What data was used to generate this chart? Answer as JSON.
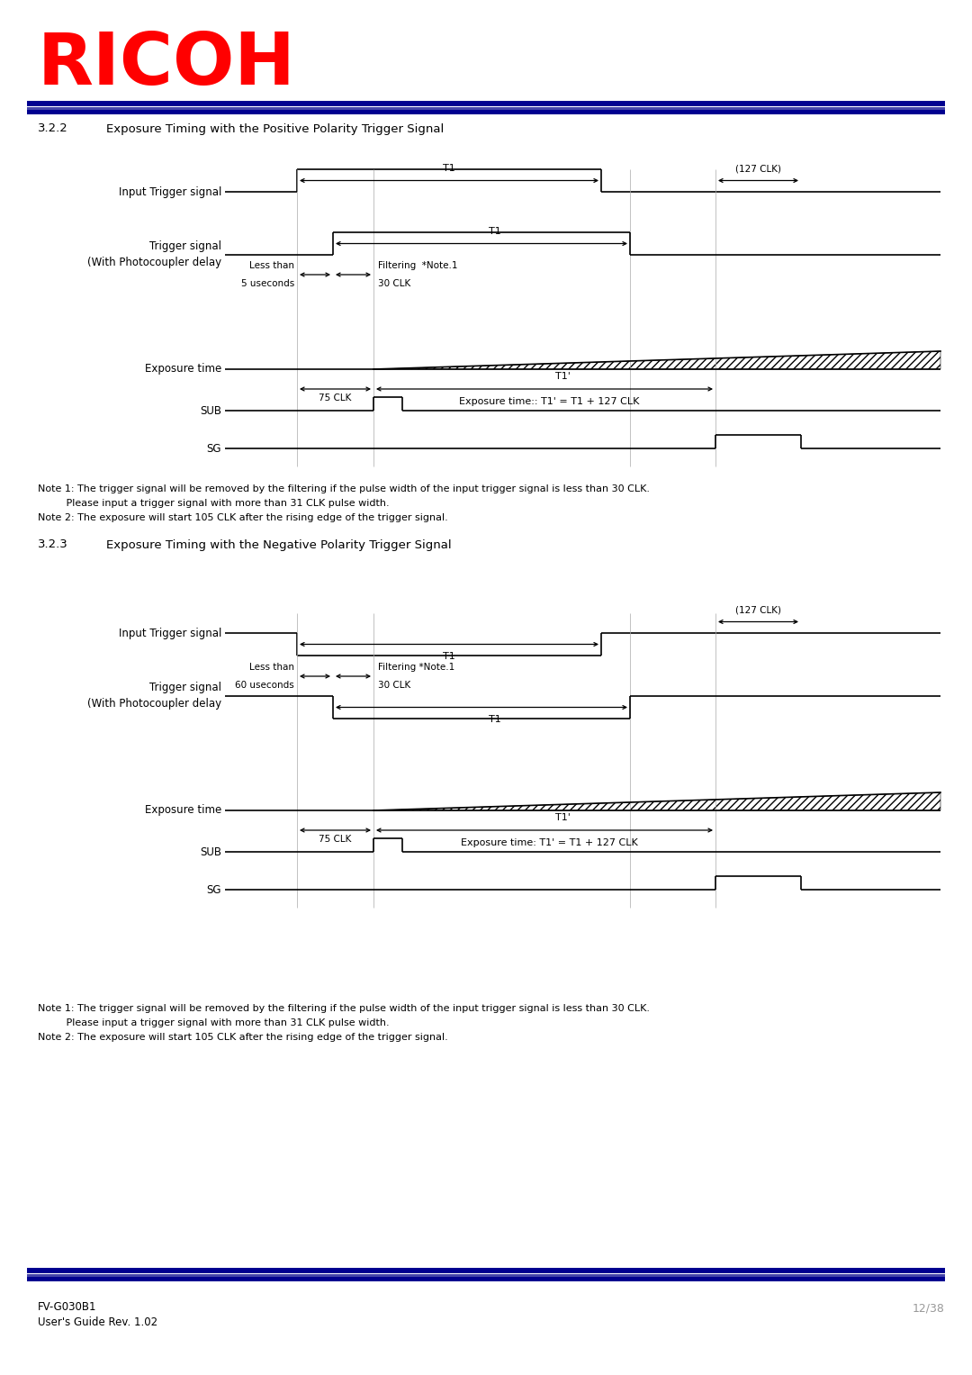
{
  "title_section1": "3.2.2",
  "title_text1": "Exposure Timing with the Positive Polarity Trigger Signal",
  "title_section2": "3.2.3",
  "title_text2": "Exposure Timing with the Negative Polarity Trigger Signal",
  "ricoh_text": "RICOH",
  "ricoh_color": "#FF0000",
  "bg_color": "#FFFFFF",
  "text_color": "#000000",
  "gray_color": "#999999",
  "footer_left1": "FV-G030B1",
  "footer_left2": "User's Guide Rev. 1.02",
  "footer_right": "12/38",
  "note1": "Note 1: The trigger signal will be removed by the filtering if the pulse width of the input trigger signal is less than 30 CLK.",
  "note1b": "         Please input a trigger signal with more than 31 CLK pulse width.",
  "note2": "Note 2: The exposure will start 105 CLK after the rising edge of the trigger signal.",
  "bar_dark": "#000090",
  "bar_mid": "#4444AA"
}
